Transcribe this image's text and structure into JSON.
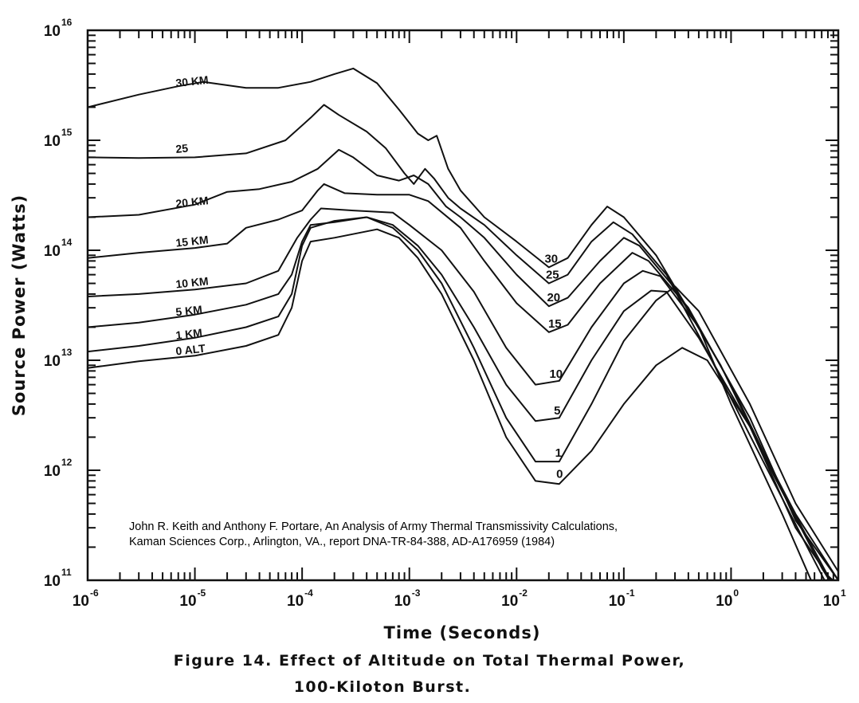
{
  "chart_data": {
    "type": "line",
    "xlabel": "Time (Seconds)",
    "ylabel": "Source Power (Watts)",
    "x_scale": "log",
    "y_scale": "log",
    "xlim": [
      1e-06,
      10
    ],
    "ylim": [
      100000000000.0,
      1e+16
    ],
    "x_ticks": [
      {
        "value": 1e-06,
        "base": "10",
        "exp": "-6"
      },
      {
        "value": 1e-05,
        "base": "10",
        "exp": "-5"
      },
      {
        "value": 0.0001,
        "base": "10",
        "exp": "-4"
      },
      {
        "value": 0.001,
        "base": "10",
        "exp": "-3"
      },
      {
        "value": 0.01,
        "base": "10",
        "exp": "-2"
      },
      {
        "value": 0.1,
        "base": "10",
        "exp": "-1"
      },
      {
        "value": 1,
        "base": "10",
        "exp": "0"
      },
      {
        "value": 10,
        "base": "10",
        "exp": "1"
      }
    ],
    "y_ticks": [
      {
        "value": 100000000000.0,
        "base": "10",
        "exp": "11"
      },
      {
        "value": 1000000000000.0,
        "base": "10",
        "exp": "12"
      },
      {
        "value": 10000000000000.0,
        "base": "10",
        "exp": "13"
      },
      {
        "value": 100000000000000.0,
        "base": "10",
        "exp": "14"
      },
      {
        "value": 1000000000000000.0,
        "base": "10",
        "exp": "15"
      },
      {
        "value": 1e+16,
        "base": "10",
        "exp": "16"
      }
    ],
    "grid": false,
    "series": [
      {
        "left_label": "30 KM",
        "right_label": "30",
        "points": [
          [
            1e-06,
            2000000000000000.0
          ],
          [
            3e-06,
            2600000000000000.0
          ],
          [
            7e-06,
            3100000000000000.0
          ],
          [
            1.2e-05,
            3400000000000000.0
          ],
          [
            3e-05,
            3000000000000000.0
          ],
          [
            6e-05,
            3000000000000000.0
          ],
          [
            0.00012,
            3400000000000000.0
          ],
          [
            0.0002,
            4000000000000000.0
          ],
          [
            0.0003,
            4500000000000000.0
          ],
          [
            0.0005,
            3300000000000000.0
          ],
          [
            0.0008,
            1900000000000000.0
          ],
          [
            0.0012,
            1150000000000000.0
          ],
          [
            0.0015,
            1000000000000000.0
          ],
          [
            0.0018,
            1100000000000000.0
          ],
          [
            0.0023,
            550000000000000.0
          ],
          [
            0.003,
            350000000000000.0
          ],
          [
            0.005,
            200000000000000.0
          ],
          [
            0.01,
            120000000000000.0
          ],
          [
            0.02,
            70000000000000.0
          ],
          [
            0.03,
            85000000000000.0
          ],
          [
            0.05,
            170000000000000.0
          ],
          [
            0.07,
            250000000000000.0
          ],
          [
            0.1,
            200000000000000.0
          ],
          [
            0.2,
            90000000000000.0
          ],
          [
            0.5,
            20000000000000.0
          ],
          [
            1,
            4000000000000.0
          ],
          [
            3,
            400000000000.0
          ],
          [
            7,
            60000000000.0
          ]
        ]
      },
      {
        "left_label": "25",
        "right_label": "25",
        "points": [
          [
            1e-06,
            700000000000000.0
          ],
          [
            3e-06,
            690000000000000.0
          ],
          [
            1e-05,
            700000000000000.0
          ],
          [
            3e-05,
            760000000000000.0
          ],
          [
            7e-05,
            1000000000000000.0
          ],
          [
            0.00012,
            1600000000000000.0
          ],
          [
            0.00016,
            2100000000000000.0
          ],
          [
            0.00022,
            1700000000000000.0
          ],
          [
            0.0004,
            1200000000000000.0
          ],
          [
            0.0006,
            850000000000000.0
          ],
          [
            0.0009,
            500000000000000.0
          ],
          [
            0.0011,
            400000000000000.0
          ],
          [
            0.0014,
            550000000000000.0
          ],
          [
            0.0017,
            450000000000000.0
          ],
          [
            0.0023,
            300000000000000.0
          ],
          [
            0.003,
            240000000000000.0
          ],
          [
            0.005,
            170000000000000.0
          ],
          [
            0.01,
            90000000000000.0
          ],
          [
            0.02,
            50000000000000.0
          ],
          [
            0.03,
            60000000000000.0
          ],
          [
            0.05,
            120000000000000.0
          ],
          [
            0.08,
            180000000000000.0
          ],
          [
            0.12,
            140000000000000.0
          ],
          [
            0.25,
            60000000000000.0
          ],
          [
            0.6,
            12000000000000.0
          ],
          [
            2,
            1200000000000.0
          ],
          [
            6,
            150000000000.0
          ],
          [
            9,
            70000000000.0
          ]
        ]
      },
      {
        "left_label": "20 KM",
        "right_label": "20",
        "points": [
          [
            1e-06,
            200000000000000.0
          ],
          [
            3e-06,
            210000000000000.0
          ],
          [
            1e-05,
            260000000000000.0
          ],
          [
            2e-05,
            340000000000000.0
          ],
          [
            4e-05,
            360000000000000.0
          ],
          [
            8e-05,
            420000000000000.0
          ],
          [
            0.00014,
            550000000000000.0
          ],
          [
            0.00022,
            820000000000000.0
          ],
          [
            0.0003,
            700000000000000.0
          ],
          [
            0.0005,
            480000000000000.0
          ],
          [
            0.0008,
            430000000000000.0
          ],
          [
            0.0011,
            480000000000000.0
          ],
          [
            0.0015,
            400000000000000.0
          ],
          [
            0.0022,
            250000000000000.0
          ],
          [
            0.003,
            200000000000000.0
          ],
          [
            0.005,
            130000000000000.0
          ],
          [
            0.01,
            60000000000000.0
          ],
          [
            0.02,
            31000000000000.0
          ],
          [
            0.03,
            37000000000000.0
          ],
          [
            0.06,
            80000000000000.0
          ],
          [
            0.1,
            130000000000000.0
          ],
          [
            0.14,
            110000000000000.0
          ],
          [
            0.3,
            45000000000000.0
          ],
          [
            0.8,
            9000000000000.0
          ],
          [
            2.5,
            900000000000.0
          ],
          [
            7,
            130000000000.0
          ],
          [
            9.5,
            80000000000.0
          ]
        ]
      },
      {
        "left_label": "15 KM",
        "right_label": "15",
        "points": [
          [
            1e-06,
            85000000000000.0
          ],
          [
            3e-06,
            95000000000000.0
          ],
          [
            1e-05,
            105000000000000.0
          ],
          [
            2e-05,
            115000000000000.0
          ],
          [
            3e-05,
            160000000000000.0
          ],
          [
            6e-05,
            190000000000000.0
          ],
          [
            0.0001,
            230000000000000.0
          ],
          [
            0.00014,
            350000000000000.0
          ],
          [
            0.00016,
            400000000000000.0
          ],
          [
            0.00025,
            330000000000000.0
          ],
          [
            0.0005,
            320000000000000.0
          ],
          [
            0.001,
            320000000000000.0
          ],
          [
            0.0015,
            280000000000000.0
          ],
          [
            0.003,
            160000000000000.0
          ],
          [
            0.005,
            80000000000000.0
          ],
          [
            0.01,
            33000000000000.0
          ],
          [
            0.02,
            18000000000000.0
          ],
          [
            0.03,
            21000000000000.0
          ],
          [
            0.06,
            50000000000000.0
          ],
          [
            0.12,
            95000000000000.0
          ],
          [
            0.17,
            80000000000000.0
          ],
          [
            0.4,
            30000000000000.0
          ],
          [
            1,
            6000000000000.0
          ],
          [
            3,
            650000000000.0
          ],
          [
            8,
            110000000000.0
          ],
          [
            10,
            90000000000.0
          ]
        ]
      },
      {
        "left_label": "10 KM",
        "right_label": "10",
        "points": [
          [
            1e-06,
            38000000000000.0
          ],
          [
            3e-06,
            40000000000000.0
          ],
          [
            1e-05,
            44000000000000.0
          ],
          [
            3e-05,
            50000000000000.0
          ],
          [
            6e-05,
            65000000000000.0
          ],
          [
            9e-05,
            130000000000000.0
          ],
          [
            0.00012,
            190000000000000.0
          ],
          [
            0.00015,
            240000000000000.0
          ],
          [
            0.0003,
            230000000000000.0
          ],
          [
            0.0007,
            220000000000000.0
          ],
          [
            0.001,
            170000000000000.0
          ],
          [
            0.002,
            100000000000000.0
          ],
          [
            0.004,
            42000000000000.0
          ],
          [
            0.008,
            13000000000000.0
          ],
          [
            0.015,
            6000000000000.0
          ],
          [
            0.025,
            6500000000000.0
          ],
          [
            0.05,
            20000000000000.0
          ],
          [
            0.1,
            50000000000000.0
          ],
          [
            0.15,
            65000000000000.0
          ],
          [
            0.22,
            58000000000000.0
          ],
          [
            0.5,
            20000000000000.0
          ],
          [
            1.5,
            3000000000000.0
          ],
          [
            4,
            350000000000.0
          ],
          [
            10,
            100000000000.0
          ]
        ]
      },
      {
        "left_label": "5 KM",
        "right_label": "5",
        "points": [
          [
            1e-06,
            20000000000000.0
          ],
          [
            3e-06,
            22000000000000.0
          ],
          [
            1e-05,
            26000000000000.0
          ],
          [
            3e-05,
            32000000000000.0
          ],
          [
            6e-05,
            40000000000000.0
          ],
          [
            8e-05,
            60000000000000.0
          ],
          [
            0.0001,
            120000000000000.0
          ],
          [
            0.00012,
            170000000000000.0
          ],
          [
            0.0002,
            180000000000000.0
          ],
          [
            0.0004,
            200000000000000.0
          ],
          [
            0.0007,
            170000000000000.0
          ],
          [
            0.0012,
            110000000000000.0
          ],
          [
            0.002,
            60000000000000.0
          ],
          [
            0.004,
            20000000000000.0
          ],
          [
            0.008,
            6000000000000.0
          ],
          [
            0.015,
            2800000000000.0
          ],
          [
            0.025,
            3000000000000.0
          ],
          [
            0.05,
            10000000000000.0
          ],
          [
            0.1,
            28000000000000.0
          ],
          [
            0.18,
            43000000000000.0
          ],
          [
            0.25,
            42000000000000.0
          ],
          [
            0.5,
            16000000000000.0
          ],
          [
            1.5,
            2500000000000.0
          ],
          [
            4,
            300000000000.0
          ],
          [
            10,
            80000000000.0
          ]
        ]
      },
      {
        "left_label": "1 KM",
        "right_label": "1",
        "points": [
          [
            1e-06,
            12000000000000.0
          ],
          [
            3e-06,
            13500000000000.0
          ],
          [
            1e-05,
            16000000000000.0
          ],
          [
            3e-05,
            20000000000000.0
          ],
          [
            6e-05,
            25000000000000.0
          ],
          [
            8e-05,
            40000000000000.0
          ],
          [
            0.0001,
            110000000000000.0
          ],
          [
            0.00012,
            160000000000000.0
          ],
          [
            0.0002,
            185000000000000.0
          ],
          [
            0.0004,
            200000000000000.0
          ],
          [
            0.0007,
            160000000000000.0
          ],
          [
            0.0012,
            100000000000000.0
          ],
          [
            0.002,
            50000000000000.0
          ],
          [
            0.004,
            13000000000000.0
          ],
          [
            0.008,
            3000000000000.0
          ],
          [
            0.015,
            1200000000000.0
          ],
          [
            0.025,
            1200000000000.0
          ],
          [
            0.05,
            4000000000000.0
          ],
          [
            0.1,
            15000000000000.0
          ],
          [
            0.2,
            35000000000000.0
          ],
          [
            0.3,
            47000000000000.0
          ],
          [
            0.5,
            28000000000000.0
          ],
          [
            1.5,
            4000000000000.0
          ],
          [
            4,
            500000000000.0
          ],
          [
            10,
            120000000000.0
          ]
        ]
      },
      {
        "left_label": "0 ALT",
        "right_label": "0",
        "points": [
          [
            1e-06,
            8500000000000.0
          ],
          [
            3e-06,
            9800000000000.0
          ],
          [
            1e-05,
            11000000000000.0
          ],
          [
            3e-05,
            13500000000000.0
          ],
          [
            6e-05,
            17000000000000.0
          ],
          [
            8e-05,
            30000000000000.0
          ],
          [
            0.0001,
            80000000000000.0
          ],
          [
            0.00012,
            120000000000000.0
          ],
          [
            0.0002,
            130000000000000.0
          ],
          [
            0.0005,
            155000000000000.0
          ],
          [
            0.0008,
            130000000000000.0
          ],
          [
            0.0012,
            85000000000000.0
          ],
          [
            0.002,
            40000000000000.0
          ],
          [
            0.004,
            10000000000000.0
          ],
          [
            0.008,
            2000000000000.0
          ],
          [
            0.015,
            800000000000.0
          ],
          [
            0.025,
            750000000000.0
          ],
          [
            0.05,
            1500000000000.0
          ],
          [
            0.1,
            4000000000000.0
          ],
          [
            0.2,
            9000000000000.0
          ],
          [
            0.35,
            13000000000000.0
          ],
          [
            0.6,
            10000000000000.0
          ],
          [
            1.5,
            2500000000000.0
          ],
          [
            4,
            400000000000.0
          ],
          [
            10,
            100000000000.0
          ]
        ]
      }
    ]
  },
  "citation": {
    "line1": "John R. Keith and Anthony F. Portare, An Analysis of Army Thermal Transmissivity Calculations,",
    "line2": "Kaman Sciences Corp., Arlington, VA., report DNA-TR-84-388, AD-A176959 (1984)"
  },
  "caption": {
    "line1": "Figure 14. Effect of Altitude on Total Thermal Power,",
    "line2": "100-Kiloton Burst."
  }
}
